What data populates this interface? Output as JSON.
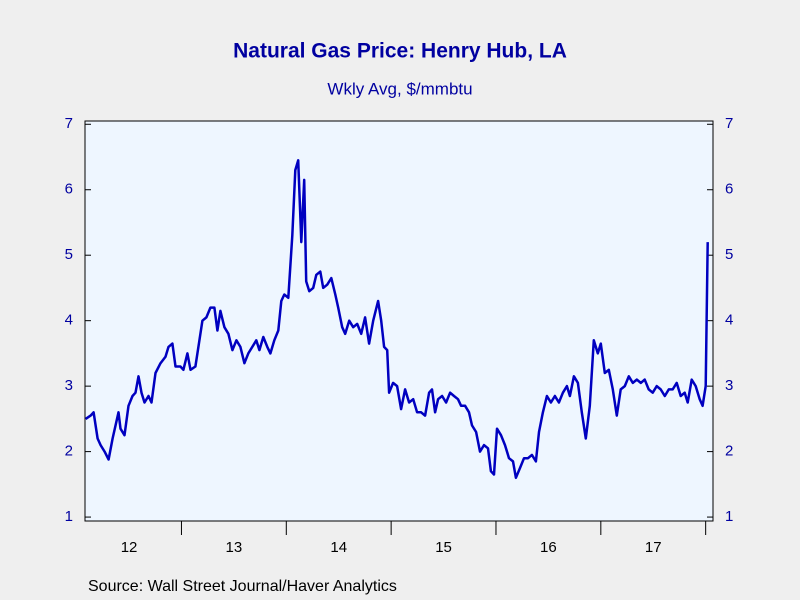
{
  "chart_data": {
    "type": "line",
    "title": "Natural Gas Price: Henry Hub, LA",
    "subtitle": "Wkly Avg, $/mmbtu",
    "source": "Source:  Wall Street Journal/Haver Analytics",
    "xlim": [
      12.08,
      18.07
    ],
    "xticks": [
      {
        "value": 12.5,
        "label": "12"
      },
      {
        "value": 13.5,
        "label": "13"
      },
      {
        "value": 14.5,
        "label": "14"
      },
      {
        "value": 15.5,
        "label": "15"
      },
      {
        "value": 16.5,
        "label": "16"
      },
      {
        "value": 17.5,
        "label": "17"
      }
    ],
    "ylim": [
      0.94,
      7.05
    ],
    "yticks": [
      1,
      2,
      3,
      4,
      5,
      6,
      7
    ],
    "y2lim": [
      0.94,
      7.05
    ],
    "y2ticks": [
      1,
      2,
      3,
      4,
      5,
      6,
      7
    ],
    "x": [
      12.086,
      12.133,
      12.162,
      12.2,
      12.229,
      12.267,
      12.305,
      12.343,
      12.4,
      12.419,
      12.457,
      12.495,
      12.533,
      12.562,
      12.59,
      12.619,
      12.648,
      12.686,
      12.714,
      12.752,
      12.8,
      12.848,
      12.876,
      12.914,
      12.943,
      12.99,
      13.019,
      13.057,
      13.086,
      13.133,
      13.162,
      13.2,
      13.238,
      13.276,
      13.314,
      13.343,
      13.371,
      13.41,
      13.448,
      13.486,
      13.524,
      13.562,
      13.6,
      13.638,
      13.676,
      13.714,
      13.743,
      13.781,
      13.819,
      13.848,
      13.886,
      13.924,
      13.952,
      13.981,
      14.019,
      14.057,
      14.086,
      14.114,
      14.143,
      14.171,
      14.19,
      14.219,
      14.257,
      14.286,
      14.324,
      14.352,
      14.39,
      14.429,
      14.467,
      14.495,
      14.533,
      14.562,
      14.6,
      14.638,
      14.676,
      14.714,
      14.752,
      14.79,
      14.829,
      14.876,
      14.905,
      14.933,
      14.962,
      14.981,
      15.019,
      15.057,
      15.095,
      15.133,
      15.171,
      15.21,
      15.248,
      15.286,
      15.324,
      15.362,
      15.39,
      15.419,
      15.448,
      15.486,
      15.524,
      15.562,
      15.6,
      15.638,
      15.667,
      15.705,
      15.743,
      15.771,
      15.81,
      15.848,
      15.886,
      15.924,
      15.952,
      15.981,
      16.01,
      16.048,
      16.086,
      16.124,
      16.162,
      16.19,
      16.229,
      16.267,
      16.305,
      16.343,
      16.381,
      16.41,
      16.448,
      16.486,
      16.524,
      16.562,
      16.6,
      16.638,
      16.676,
      16.705,
      16.743,
      16.781,
      16.819,
      16.857,
      16.895,
      16.933,
      16.971,
      17.0,
      17.038,
      17.076,
      17.114,
      17.152,
      17.19,
      17.229,
      17.267,
      17.305,
      17.343,
      17.381,
      17.419,
      17.457,
      17.495,
      17.533,
      17.571,
      17.61,
      17.648,
      17.686,
      17.724,
      17.762,
      17.8,
      17.829,
      17.867,
      17.905,
      17.943,
      17.971,
      18.0,
      18.019
    ],
    "series": [
      {
        "name": "Natural Gas Price",
        "color": "#0000c0",
        "values": [
          2.5,
          2.55,
          2.6,
          2.2,
          2.1,
          2.0,
          1.88,
          2.2,
          2.6,
          2.35,
          2.25,
          2.7,
          2.85,
          2.9,
          3.15,
          2.9,
          2.75,
          2.85,
          2.75,
          3.2,
          3.35,
          3.45,
          3.6,
          3.65,
          3.3,
          3.3,
          3.25,
          3.5,
          3.25,
          3.3,
          3.6,
          4.0,
          4.05,
          4.2,
          4.2,
          3.85,
          4.15,
          3.9,
          3.8,
          3.55,
          3.7,
          3.6,
          3.35,
          3.5,
          3.6,
          3.7,
          3.55,
          3.75,
          3.6,
          3.5,
          3.7,
          3.85,
          4.3,
          4.4,
          4.35,
          5.3,
          6.3,
          6.45,
          5.2,
          6.15,
          4.6,
          4.45,
          4.5,
          4.7,
          4.75,
          4.5,
          4.55,
          4.65,
          4.4,
          4.2,
          3.9,
          3.8,
          4.0,
          3.9,
          3.95,
          3.8,
          4.05,
          3.65,
          4.0,
          4.3,
          4.0,
          3.6,
          3.55,
          2.9,
          3.05,
          3.0,
          2.65,
          2.95,
          2.75,
          2.8,
          2.6,
          2.6,
          2.55,
          2.9,
          2.95,
          2.6,
          2.8,
          2.85,
          2.75,
          2.9,
          2.85,
          2.8,
          2.7,
          2.7,
          2.6,
          2.4,
          2.3,
          2.0,
          2.1,
          2.05,
          1.7,
          1.65,
          2.35,
          2.25,
          2.1,
          1.9,
          1.85,
          1.6,
          1.75,
          1.9,
          1.9,
          1.95,
          1.85,
          2.3,
          2.6,
          2.85,
          2.75,
          2.85,
          2.75,
          2.9,
          3.0,
          2.85,
          3.15,
          3.05,
          2.6,
          2.2,
          2.7,
          3.7,
          3.5,
          3.65,
          3.2,
          3.25,
          2.95,
          2.55,
          2.95,
          3.0,
          3.15,
          3.05,
          3.1,
          3.05,
          3.1,
          2.95,
          2.9,
          3.0,
          2.95,
          2.85,
          2.95,
          2.95,
          3.05,
          2.85,
          2.9,
          2.75,
          3.1,
          3.0,
          2.8,
          2.7,
          3.0,
          5.2
        ]
      }
    ]
  }
}
